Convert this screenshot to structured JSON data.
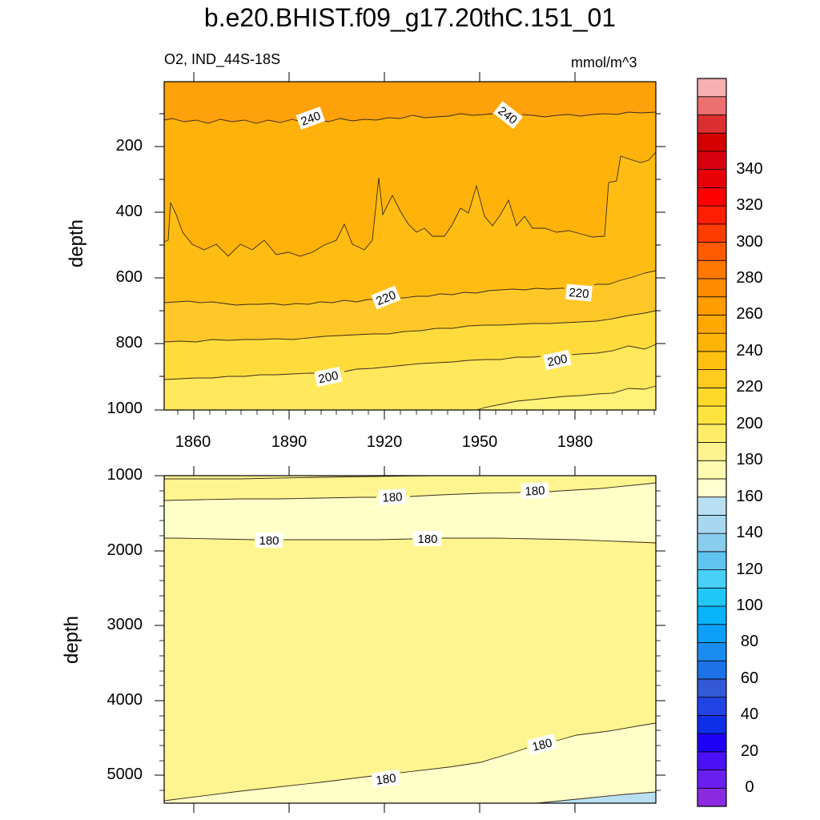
{
  "chart_data": {
    "type": "heatmap",
    "title": "b.e20.BHIST.f09_g17.20thC.151_01",
    "left_string": "O2, IND_44S-18S",
    "right_string": "mmol/m^3",
    "xlim": [
      1850,
      2005
    ],
    "x_ticks": [
      "1860",
      "1890",
      "1920",
      "1950",
      "1980"
    ],
    "panels": [
      {
        "name": "upper",
        "ylabel": "depth",
        "ylim": [
          0,
          1000
        ],
        "y_ticks": [
          "200",
          "400",
          "600",
          "800",
          "1000"
        ],
        "contour_labels": [
          "240",
          "240",
          "220",
          "220",
          "200",
          "200"
        ],
        "contour_levels": [
          240,
          230,
          220,
          210,
          200,
          190
        ]
      },
      {
        "name": "lower",
        "ylabel": "depth",
        "ylim": [
          1000,
          5375
        ],
        "y_ticks": [
          "1000",
          "2000",
          "3000",
          "4000",
          "5000"
        ],
        "contour_labels": [
          "180",
          "180",
          "180",
          "180",
          "180",
          "180"
        ],
        "contour_levels": [
          190,
          180,
          180,
          170
        ]
      }
    ],
    "colorbar": {
      "labels": [
        "0",
        "20",
        "40",
        "60",
        "80",
        "100",
        "120",
        "140",
        "160",
        "180",
        "200",
        "220",
        "240",
        "260",
        "280",
        "300",
        "320",
        "340"
      ],
      "colors": [
        "#8a2be2",
        "#6b1ef0",
        "#4b10f5",
        "#1e00f8",
        "#0e2ee8",
        "#2244e6",
        "#3358d8",
        "#1e72e8",
        "#1a8cf0",
        "#0ca0f8",
        "#08b4f8",
        "#20c8f8",
        "#48d0f8",
        "#60c4f0",
        "#88ccee",
        "#a8d8f0",
        "#b8e0f2",
        "#ffffd0",
        "#fffbb0",
        "#fff390",
        "#ffec68",
        "#ffe440",
        "#ffd82c",
        "#ffcc1e",
        "#ffc010",
        "#ffb408",
        "#ffa800",
        "#ff9c00",
        "#ff8c00",
        "#ff7800",
        "#ff5a00",
        "#ff3c00",
        "#ff1e00",
        "#ff0000",
        "#e80008",
        "#d80010",
        "#d40000",
        "#dc3030",
        "#ec7070",
        "#f8b0b0"
      ]
    }
  }
}
